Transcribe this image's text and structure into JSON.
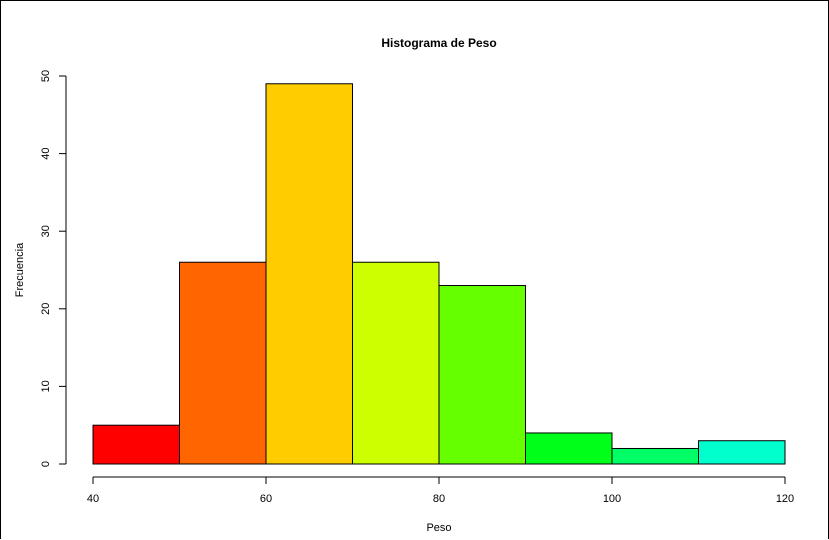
{
  "chart_data": {
    "type": "bar",
    "title": "Histograma de Peso",
    "xlabel": "Peso",
    "ylabel": "Frecuencia",
    "bins": [
      {
        "from": 40,
        "to": 50,
        "count": 5,
        "color": "#FF0000"
      },
      {
        "from": 50,
        "to": 60,
        "count": 26,
        "color": "#FF6600"
      },
      {
        "from": 60,
        "to": 70,
        "count": 49,
        "color": "#FFCC00"
      },
      {
        "from": 70,
        "to": 80,
        "count": 26,
        "color": "#CCFF00"
      },
      {
        "from": 80,
        "to": 90,
        "count": 23,
        "color": "#66FF00"
      },
      {
        "from": 90,
        "to": 100,
        "count": 4,
        "color": "#00FF19"
      },
      {
        "from": 100,
        "to": 110,
        "count": 2,
        "color": "#00FF66"
      },
      {
        "from": 110,
        "to": 120,
        "count": 3,
        "color": "#00FFCC"
      }
    ],
    "xticks": [
      40,
      60,
      80,
      100,
      120
    ],
    "yticks": [
      0,
      10,
      20,
      30,
      40,
      50
    ],
    "xlim": [
      40,
      120
    ],
    "ylim": [
      0,
      50
    ],
    "grid": false
  }
}
